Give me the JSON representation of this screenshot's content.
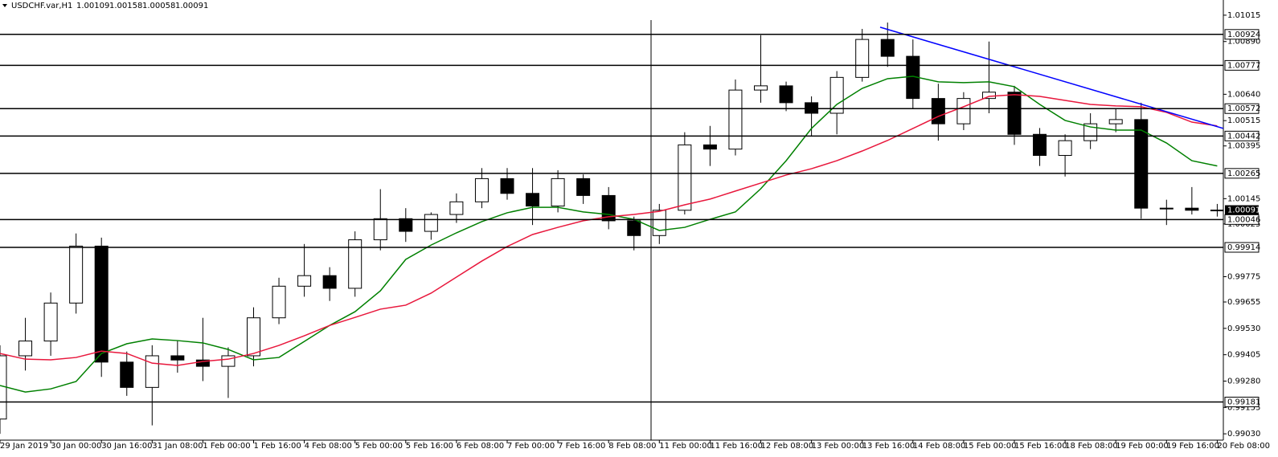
{
  "chart_data": {
    "type": "candlestick",
    "title": "USDCHF.var,H1",
    "header_ohlc": [
      1.00109,
      1.00158,
      1.00058,
      1.00091
    ],
    "categories": [
      "29 Jan 2019",
      null,
      "30 Jan 00:00",
      null,
      "30 Jan 16:00",
      null,
      "31 Jan 08:00",
      null,
      "1 Feb 00:00",
      null,
      "1 Feb 16:00",
      null,
      "4 Feb 08:00",
      null,
      "5 Feb 00:00",
      null,
      "5 Feb 16:00",
      null,
      "6 Feb 08:00",
      null,
      "7 Feb 00:00",
      null,
      "7 Feb 16:00",
      null,
      "8 Feb 08:00",
      null,
      "11 Feb 00:00",
      null,
      "11 Feb 16:00",
      null,
      "12 Feb 08:00",
      null,
      "13 Feb 00:00",
      null,
      "13 Feb 16:00",
      null,
      "14 Feb 08:00",
      null,
      "15 Feb 00:00",
      null,
      "15 Feb 16:00",
      null,
      "18 Feb 08:00",
      null,
      "19 Feb 00:00",
      null,
      "19 Feb 16:00",
      null,
      "20 Feb 08:00"
    ],
    "open": [
      0.991,
      0.994,
      0.9947,
      0.9965,
      0.9992,
      0.9937,
      0.9925,
      0.994,
      0.9938,
      0.9935,
      0.994,
      0.9958,
      0.9973,
      0.9978,
      0.9972,
      0.9995,
      1.0005,
      0.9999,
      1.0007,
      1.0013,
      1.0024,
      1.0017,
      1.0011,
      1.0024,
      1.0016,
      1.0004,
      0.9997,
      1.0009,
      1.004,
      1.0038,
      1.0066,
      1.0068,
      1.006,
      1.0055,
      1.0072,
      1.009,
      1.0082,
      1.0062,
      1.005,
      1.0062,
      1.0065,
      1.0045,
      1.0035,
      1.0042,
      1.005,
      1.0052,
      1.001,
      1.001,
      1.0009
    ],
    "high": [
      0.9945,
      0.9958,
      0.997,
      0.9998,
      0.9996,
      0.9942,
      0.9945,
      0.9947,
      0.9958,
      0.9944,
      0.9963,
      0.9977,
      0.9993,
      0.9982,
      0.9999,
      1.0019,
      1.001,
      1.0008,
      1.0017,
      1.0029,
      1.0029,
      1.0029,
      1.0028,
      1.0026,
      1.002,
      1.0006,
      1.0012,
      1.0046,
      1.0049,
      1.0071,
      1.0092,
      1.007,
      1.0063,
      1.0075,
      1.0095,
      1.0098,
      1.009,
      1.0069,
      1.0065,
      1.0089,
      1.0068,
      1.0048,
      1.0045,
      1.0055,
      1.0057,
      1.006,
      1.0014,
      1.002,
      1.0012
    ],
    "low": [
      0.9903,
      0.9933,
      0.994,
      0.996,
      0.993,
      0.9921,
      0.9907,
      0.9932,
      0.9928,
      0.992,
      0.9935,
      0.9955,
      0.9968,
      0.9966,
      0.9968,
      0.999,
      0.9994,
      0.9995,
      1.0003,
      1.001,
      1.0014,
      1.0002,
      1.0008,
      1.0012,
      1.0,
      0.999,
      0.9993,
      1.0007,
      1.003,
      1.0035,
      1.006,
      1.0056,
      1.0044,
      1.0045,
      1.007,
      1.0077,
      1.0057,
      1.0042,
      1.0047,
      1.0055,
      1.004,
      1.003,
      1.0025,
      1.0038,
      1.0046,
      1.0005,
      1.0002,
      1.0007,
      1.0006
    ],
    "close": [
      0.994,
      0.9947,
      0.9965,
      0.9992,
      0.9937,
      0.9925,
      0.994,
      0.9938,
      0.9935,
      0.994,
      0.9958,
      0.9973,
      0.9978,
      0.9972,
      0.9995,
      1.0005,
      0.9999,
      1.0007,
      1.0013,
      1.0024,
      1.0017,
      1.0011,
      1.0024,
      1.0016,
      1.0004,
      0.9997,
      1.0009,
      1.004,
      1.0038,
      1.0066,
      1.0068,
      1.006,
      1.0055,
      1.0072,
      1.009,
      1.0082,
      1.0062,
      1.005,
      1.0062,
      1.0065,
      1.0045,
      1.0035,
      1.0042,
      1.005,
      1.0052,
      1.001,
      1.001,
      1.0009,
      1.00091
    ],
    "series": [
      {
        "color": "#008000",
        "values": [
          0.99259,
          0.99228,
          0.99243,
          0.99278,
          0.99411,
          0.99457,
          0.9948,
          0.99472,
          0.99461,
          0.9943,
          0.99381,
          0.99392,
          0.99468,
          0.99544,
          0.99609,
          0.99708,
          0.99857,
          0.99925,
          0.99983,
          1.00036,
          1.00078,
          1.00104,
          1.00104,
          1.00082,
          1.0007,
          1.00047,
          0.99994,
          1.00009,
          1.00047,
          1.00082,
          1.00192,
          1.00325,
          1.00478,
          1.00592,
          1.00668,
          1.00714,
          1.00725,
          1.00699,
          1.00695,
          1.00699,
          1.00676,
          1.00592,
          1.00516,
          1.00485,
          1.0047,
          1.0047,
          1.00409,
          1.00325,
          1.003
        ]
      },
      {
        "color": "#e8173c",
        "values": [
          0.99411,
          0.99384,
          0.99381,
          0.99392,
          0.99422,
          0.99411,
          0.99365,
          0.99354,
          0.99373,
          0.99384,
          0.99411,
          0.99449,
          0.99495,
          0.99544,
          0.99582,
          0.99621,
          0.9964,
          0.99697,
          0.99773,
          0.99849,
          0.99918,
          0.99975,
          1.00009,
          1.0004,
          1.00059,
          1.0007,
          1.00085,
          1.00116,
          1.00143,
          1.00181,
          1.00219,
          1.00257,
          1.00287,
          1.00325,
          1.00371,
          1.00421,
          1.00478,
          1.00535,
          1.00581,
          1.0063,
          1.00638,
          1.0063,
          1.00611,
          1.00592,
          1.00585,
          1.00581,
          1.00554,
          1.00508,
          1.0049
        ]
      }
    ],
    "trendline": {
      "color": "#0000ff",
      "values": [
        1.00958,
        1.00478
      ]
    },
    "levels": [
      1.00924,
      1.00777,
      1.00572,
      1.00442,
      1.00265,
      1.00046,
      0.99914,
      0.99181
    ],
    "current_price": 1.00091,
    "up_color": "#ffffff",
    "down_color": "#000000",
    "ylim": [
      0.99,
      1.01087
    ],
    "yticks": [
      1.01015,
      {
        "value": 1.0089,
        "label": "1.00890"
      },
      {
        "value": 1.0064,
        "label": "1.00640"
      },
      1.00515,
      1.00395,
      1.00145,
      1.00025,
      0.99775,
      0.99655,
      {
        "value": 0.9953,
        "label": "0.99530"
      },
      0.99405,
      {
        "value": 0.9928,
        "label": "0.99280"
      },
      0.99155,
      {
        "value": 0.9903,
        "label": "0.99030"
      }
    ]
  }
}
